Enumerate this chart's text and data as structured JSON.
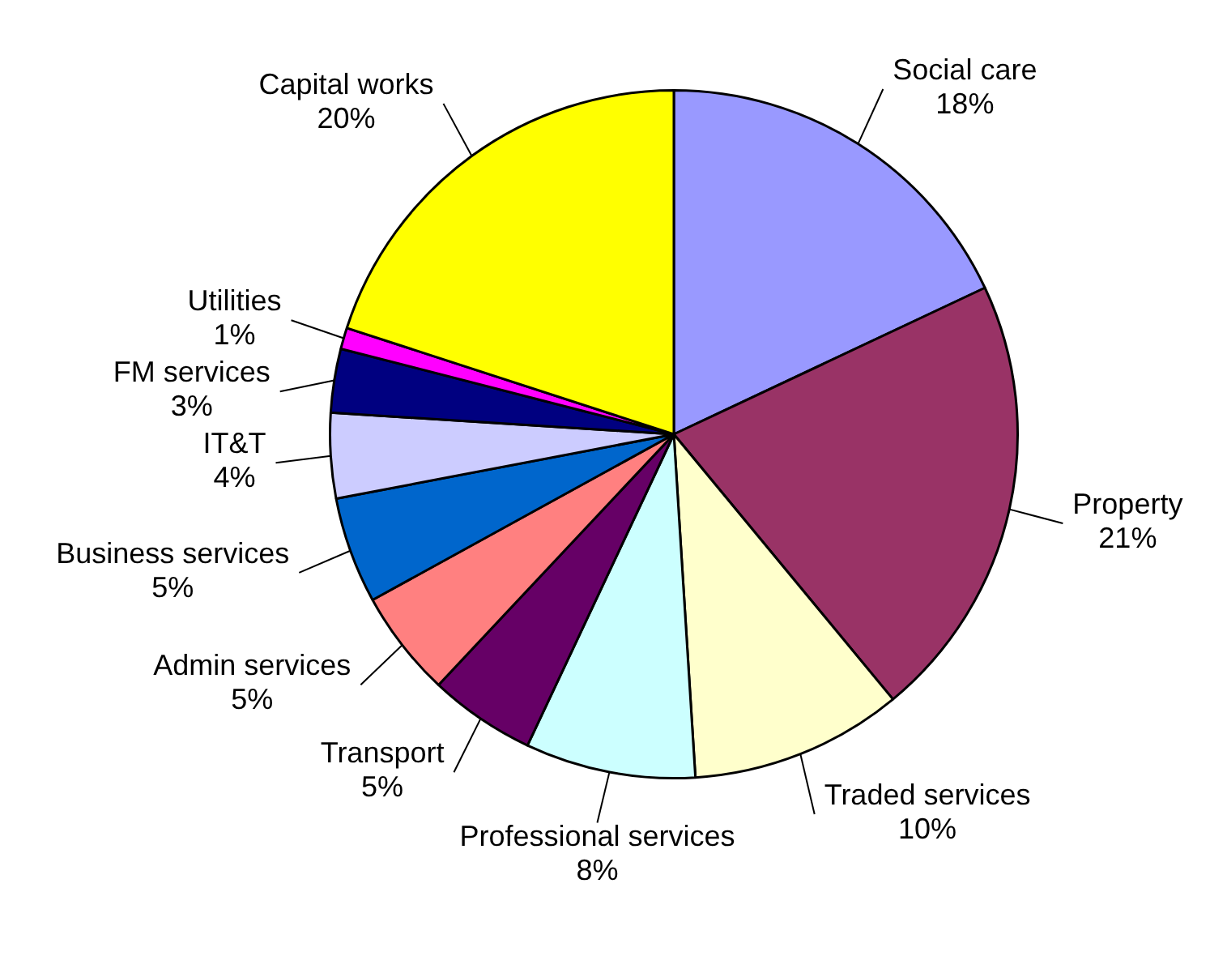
{
  "chart_data": {
    "type": "pie",
    "categories": [
      "Social care",
      "Property",
      "Traded services",
      "Professional services",
      "Transport",
      "Admin services",
      "Business services",
      "IT&T",
      "FM services",
      "Utilities",
      "Capital works"
    ],
    "values": [
      18,
      21,
      10,
      8,
      5,
      5,
      5,
      4,
      3,
      1,
      20
    ],
    "value_labels": [
      "18%",
      "21%",
      "10%",
      "8%",
      "5%",
      "5%",
      "5%",
      "4%",
      "3%",
      "1%",
      "20%"
    ],
    "colors": [
      "#9999ff",
      "#993366",
      "#ffffcc",
      "#ccffff",
      "#660066",
      "#ff8080",
      "#0066cc",
      "#ccccff",
      "#000080",
      "#ff00ff",
      "#ffff00"
    ],
    "legend": false
  }
}
